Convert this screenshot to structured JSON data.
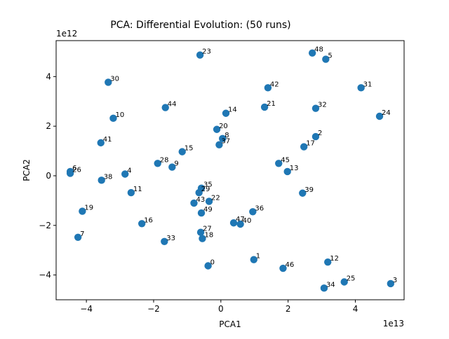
{
  "chart_data": {
    "type": "scatter",
    "title": "PCA: Differential Evolution: (50 runs)",
    "xlabel": "PCA1",
    "ylabel": "PCA2",
    "x_offset_label": "1e13",
    "y_offset_label": "1e12",
    "x_scale": 10000000000000.0,
    "y_scale": 1000000000000.0,
    "xlim": [
      -4.9,
      5.45
    ],
    "ylim": [
      -5.0,
      5.45
    ],
    "x_ticks": [
      -4,
      -2,
      0,
      2,
      4
    ],
    "y_ticks": [
      -4,
      -2,
      0,
      2,
      4
    ],
    "x_tick_labels": [
      "−4",
      "−2",
      "0",
      "2",
      "4"
    ],
    "y_tick_labels": [
      "−4",
      "−2",
      "0",
      "2",
      "4"
    ],
    "marker_color": "#1f77b4",
    "grid": false,
    "points": [
      {
        "label": "0",
        "x": -0.38,
        "y": -3.63
      },
      {
        "label": "1",
        "x": 0.98,
        "y": -3.38
      },
      {
        "label": "2",
        "x": 2.82,
        "y": 1.58
      },
      {
        "label": "3",
        "x": 5.05,
        "y": -4.35
      },
      {
        "label": "4",
        "x": -2.85,
        "y": 0.07
      },
      {
        "label": "5",
        "x": 3.12,
        "y": 4.7
      },
      {
        "label": "6",
        "x": -4.48,
        "y": 0.17
      },
      {
        "label": "7",
        "x": -4.25,
        "y": -2.48
      },
      {
        "label": "8",
        "x": 0.05,
        "y": 1.5
      },
      {
        "label": "9",
        "x": -1.45,
        "y": 0.35
      },
      {
        "label": "10",
        "x": -3.2,
        "y": 2.32
      },
      {
        "label": "11",
        "x": -2.67,
        "y": -0.68
      },
      {
        "label": "12",
        "x": 3.18,
        "y": -3.48
      },
      {
        "label": "13",
        "x": 1.98,
        "y": 0.17
      },
      {
        "label": "14",
        "x": 0.15,
        "y": 2.52
      },
      {
        "label": "15",
        "x": -1.15,
        "y": 0.97
      },
      {
        "label": "16",
        "x": -2.35,
        "y": -1.93
      },
      {
        "label": "17",
        "x": 2.47,
        "y": 1.17
      },
      {
        "label": "18",
        "x": -0.55,
        "y": -2.53
      },
      {
        "label": "19",
        "x": -4.12,
        "y": -1.43
      },
      {
        "label": "20",
        "x": -0.12,
        "y": 1.87
      },
      {
        "label": "21",
        "x": 1.3,
        "y": 2.77
      },
      {
        "label": "22",
        "x": -0.35,
        "y": -1.03
      },
      {
        "label": "23",
        "x": -0.62,
        "y": 4.87
      },
      {
        "label": "24",
        "x": 4.72,
        "y": 2.4
      },
      {
        "label": "25",
        "x": 3.67,
        "y": -4.28
      },
      {
        "label": "26",
        "x": -4.48,
        "y": 0.1
      },
      {
        "label": "27",
        "x": -0.6,
        "y": -2.28
      },
      {
        "label": "28",
        "x": -1.88,
        "y": 0.5
      },
      {
        "label": "29",
        "x": -0.65,
        "y": -0.68
      },
      {
        "label": "30",
        "x": -3.35,
        "y": 3.77
      },
      {
        "label": "31",
        "x": 4.17,
        "y": 3.55
      },
      {
        "label": "32",
        "x": 2.82,
        "y": 2.72
      },
      {
        "label": "33",
        "x": -1.68,
        "y": -2.65
      },
      {
        "label": "34",
        "x": 3.07,
        "y": -4.53
      },
      {
        "label": "35",
        "x": -0.58,
        "y": -0.5
      },
      {
        "label": "36",
        "x": 0.95,
        "y": -1.45
      },
      {
        "label": "37",
        "x": -0.05,
        "y": 1.25
      },
      {
        "label": "38",
        "x": -3.55,
        "y": -0.18
      },
      {
        "label": "39",
        "x": 2.43,
        "y": -0.7
      },
      {
        "label": "40",
        "x": 0.58,
        "y": -1.95
      },
      {
        "label": "41",
        "x": -3.57,
        "y": 1.33
      },
      {
        "label": "42",
        "x": 1.4,
        "y": 3.55
      },
      {
        "label": "43",
        "x": -0.8,
        "y": -1.1
      },
      {
        "label": "44",
        "x": -1.65,
        "y": 2.75
      },
      {
        "label": "45",
        "x": 1.72,
        "y": 0.5
      },
      {
        "label": "46",
        "x": 1.85,
        "y": -3.73
      },
      {
        "label": "47",
        "x": 0.38,
        "y": -1.9
      },
      {
        "label": "48",
        "x": 2.72,
        "y": 4.95
      },
      {
        "label": "49",
        "x": -0.58,
        "y": -1.5
      }
    ]
  }
}
